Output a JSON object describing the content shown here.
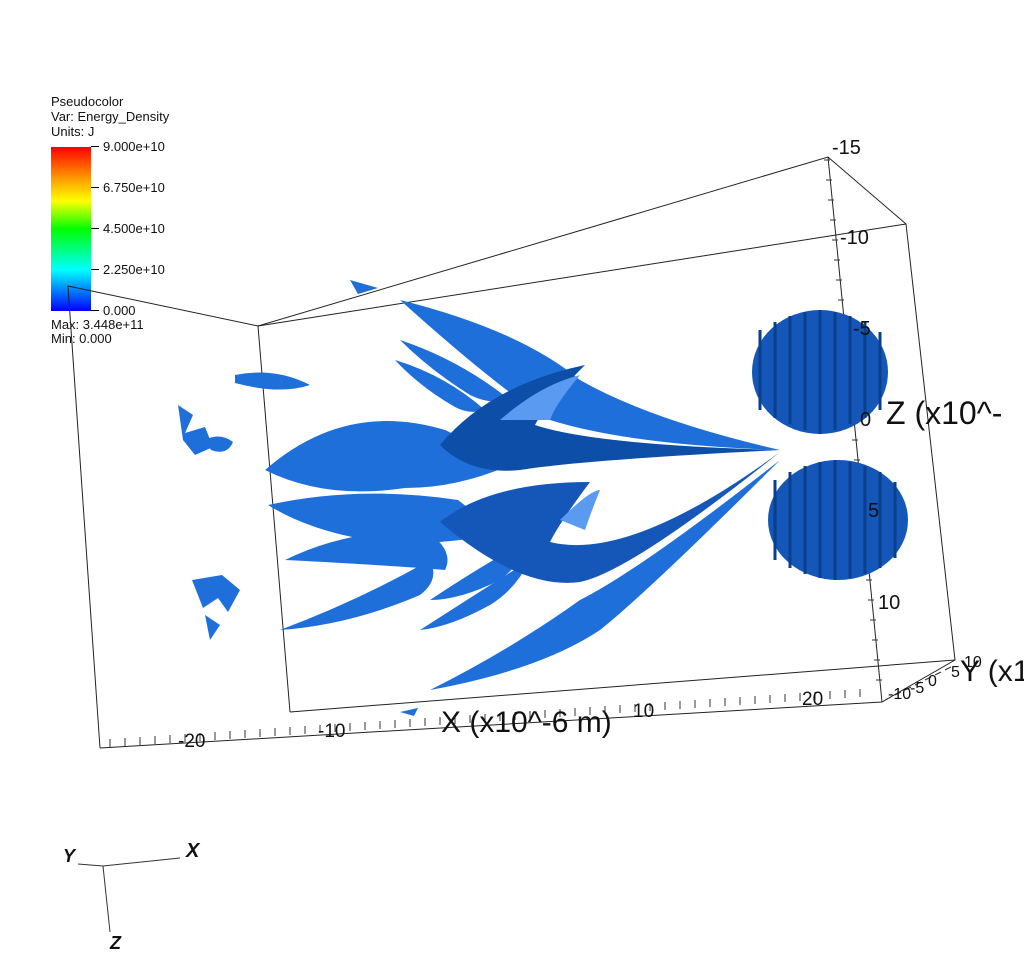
{
  "legend": {
    "plot_type": "Pseudocolor",
    "var_line": "Var: Energy_Density",
    "units_line": "Units: J",
    "ticks": [
      "9.000e+10",
      "6.750e+10",
      "4.500e+10",
      "2.250e+10",
      "0.000"
    ],
    "max_line": "Max:  3.448e+11",
    "min_line": "Min:  0.000",
    "colormap": [
      "#ff0000",
      "#ffb000",
      "#ffff00",
      "#00ff00",
      "#00ffff",
      "#0000ff"
    ]
  },
  "axes": {
    "x": {
      "title": "X (x10^-6 m)",
      "ticks": [
        "-20",
        "-10",
        "10",
        "20"
      ]
    },
    "z": {
      "title": "Z (x10^-",
      "ticks": [
        "-15",
        "-10",
        "-5",
        "0",
        "5",
        "10"
      ]
    },
    "y": {
      "title": "Y (x1",
      "ticks": [
        "10",
        "5",
        "0",
        "-5",
        "-10"
      ]
    }
  },
  "triad": {
    "x": "X",
    "y": "Y",
    "z": "Z"
  },
  "colors": {
    "surface": "#1e6fd9",
    "surface_dark": "#0d4fa8",
    "box": "#222222"
  }
}
